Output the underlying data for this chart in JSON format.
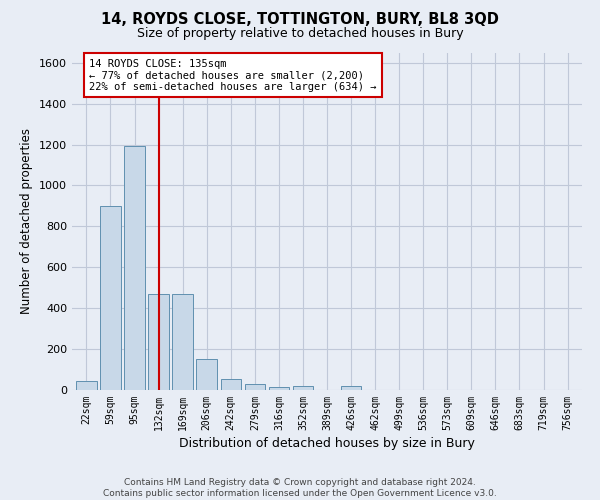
{
  "title": "14, ROYDS CLOSE, TOTTINGTON, BURY, BL8 3QD",
  "subtitle": "Size of property relative to detached houses in Bury",
  "xlabel": "Distribution of detached houses by size in Bury",
  "ylabel": "Number of detached properties",
  "footer_line1": "Contains HM Land Registry data © Crown copyright and database right 2024.",
  "footer_line2": "Contains public sector information licensed under the Open Government Licence v3.0.",
  "categories": [
    "22sqm",
    "59sqm",
    "95sqm",
    "132sqm",
    "169sqm",
    "206sqm",
    "242sqm",
    "279sqm",
    "316sqm",
    "352sqm",
    "389sqm",
    "426sqm",
    "462sqm",
    "499sqm",
    "536sqm",
    "573sqm",
    "609sqm",
    "646sqm",
    "683sqm",
    "719sqm",
    "756sqm"
  ],
  "values": [
    45,
    900,
    1195,
    470,
    470,
    150,
    55,
    30,
    15,
    20,
    0,
    20,
    0,
    0,
    0,
    0,
    0,
    0,
    0,
    0,
    0
  ],
  "bar_color": "#c8d8e8",
  "bar_edge_color": "#6090b0",
  "grid_color": "#c0c8d8",
  "bg_color": "#e8edf5",
  "vline_x": 3,
  "vline_color": "#cc0000",
  "annotation_line1": "14 ROYDS CLOSE: 135sqm",
  "annotation_line2": "← 77% of detached houses are smaller (2,200)",
  "annotation_line3": "22% of semi-detached houses are larger (634) →",
  "annotation_box_color": "#ffffff",
  "annotation_box_edge": "#cc0000",
  "ylim": [
    0,
    1650
  ],
  "yticks": [
    0,
    200,
    400,
    600,
    800,
    1000,
    1200,
    1400,
    1600
  ]
}
